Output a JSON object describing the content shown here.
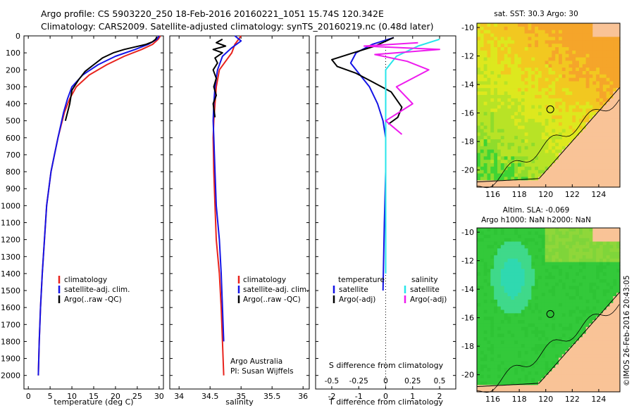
{
  "header": {
    "line1": "Argo profile: CS 5903220_250 18-Feb-2016 20160221_1051 15.74S 120.342E",
    "line2": "Climatology: CARS2009. Satellite-adjusted climatology: synTS_20160219.nc (0.48d later)"
  },
  "colors": {
    "climatology": "#e8231d",
    "satellite": "#1414e6",
    "argo": "#000000",
    "satellite_s": "#27e6ea",
    "argo_s": "#ee1cee",
    "land": "#f9c397"
  },
  "chart_data": [
    {
      "type": "line",
      "id": "temperature",
      "xlabel": "temperature (deg C)",
      "xlim": [
        -1,
        31
      ],
      "ylim": [
        0,
        2080
      ],
      "xticks": [
        "0",
        "5",
        "10",
        "15",
        "20",
        "25",
        "30"
      ],
      "yticks": [
        "0",
        "100",
        "200",
        "300",
        "400",
        "500",
        "600",
        "700",
        "800",
        "900",
        "1000",
        "1100",
        "1200",
        "1300",
        "1400",
        "1500",
        "1600",
        "1700",
        "1800",
        "1900",
        "2000"
      ],
      "series": [
        {
          "name": "climatology",
          "x": [
            30.3,
            29.8,
            28.5,
            26,
            22,
            18,
            14,
            11,
            9.5,
            8.3,
            6.8,
            6,
            5.2,
            4.7,
            4.2,
            3.7,
            3.2,
            2.8,
            2.5,
            2.3
          ],
          "y": [
            0,
            20,
            50,
            80,
            120,
            170,
            230,
            300,
            370,
            450,
            600,
            700,
            800,
            900,
            1000,
            1200,
            1400,
            1600,
            1800,
            2000
          ]
        },
        {
          "name": "satellite-adj. clim.",
          "x": [
            30,
            29.5,
            27.5,
            24.5,
            20,
            16,
            12.5,
            10,
            9,
            8.1,
            6.8,
            6,
            5.2,
            4.7,
            4.2,
            3.7,
            3.2,
            2.8,
            2.5,
            2.3
          ],
          "y": [
            0,
            20,
            50,
            80,
            120,
            170,
            230,
            300,
            370,
            450,
            600,
            700,
            800,
            900,
            1000,
            1200,
            1400,
            1600,
            1800,
            2000
          ]
        },
        {
          "name": "Argo(..raw -QC)",
          "x": [
            29.5,
            29.2,
            28.5,
            27,
            24.5,
            22,
            19.5,
            17,
            15,
            13,
            11.5,
            10,
            9.5,
            8.5
          ],
          "y": [
            5,
            20,
            35,
            50,
            65,
            80,
            100,
            130,
            170,
            210,
            260,
            320,
            400,
            500
          ]
        }
      ],
      "legend": [
        "climatology",
        "satellite-adj. clim.",
        "Argo(..raw -QC)"
      ]
    },
    {
      "type": "line",
      "id": "salinity",
      "xlabel": "salinity",
      "xlim": [
        33.85,
        36.1
      ],
      "ylim": [
        0,
        2080
      ],
      "xticks": [
        "34",
        "34.5",
        "35",
        "35.5",
        "36"
      ],
      "series": [
        {
          "name": "climatology",
          "x": [
            35,
            34.9,
            34.85,
            34.75,
            34.65,
            34.6,
            34.58,
            34.56,
            34.55,
            34.56,
            34.58,
            34.6,
            34.65,
            34.68,
            34.7,
            34.72
          ],
          "y": [
            0,
            50,
            100,
            150,
            200,
            300,
            400,
            500,
            600,
            800,
            1000,
            1200,
            1400,
            1600,
            1800,
            2000
          ]
        },
        {
          "name": "satellite-adj. clim.",
          "x": [
            34.9,
            35,
            34.85,
            34.7,
            34.62,
            34.58,
            34.56,
            34.55,
            34.56,
            34.58,
            34.6,
            34.65,
            34.68,
            34.7,
            34.72
          ],
          "y": [
            0,
            30,
            70,
            120,
            200,
            300,
            400,
            500,
            600,
            800,
            1000,
            1200,
            1400,
            1600,
            1800
          ]
        },
        {
          "name": "Argo(..raw -QC)",
          "x": [
            34.7,
            34.6,
            34.75,
            34.55,
            34.7,
            34.58,
            34.62,
            34.55,
            34.6,
            34.56,
            34.6,
            34.55,
            34.58
          ],
          "y": [
            20,
            40,
            60,
            80,
            100,
            130,
            160,
            200,
            250,
            300,
            350,
            400,
            480
          ]
        }
      ],
      "legend": [
        "climatology",
        "satellite-adj. clim.",
        "Argo(..raw -QC)"
      ],
      "annotations": [
        "Argo Australia",
        "PI: Susan Wijffels"
      ]
    },
    {
      "type": "line",
      "id": "difference",
      "xlabel": "T difference from climatology",
      "xlabel_top": "S difference from climatology",
      "xlim": [
        -2.6,
        2.6
      ],
      "ylim": [
        0,
        2080
      ],
      "xticks": [
        "-2",
        "-1",
        "0",
        "1",
        "2"
      ],
      "xticks_s": [
        "-0.5",
        "-0.25",
        "0",
        "0.25",
        "0.5"
      ],
      "series": [
        {
          "name": "temperature satellite",
          "x": [
            0.3,
            -0.5,
            -1.1,
            -1.3,
            -1.0,
            -0.6,
            -0.3,
            -0.1,
            0,
            0,
            -0.05,
            -0.1
          ],
          "y": [
            10,
            50,
            100,
            160,
            220,
            300,
            400,
            500,
            600,
            800,
            1100,
            1500
          ]
        },
        {
          "name": "temperature Argo(-adj)",
          "x": [
            0.3,
            -0.4,
            -1.2,
            -2.0,
            -1.8,
            -1.1,
            -0.5,
            0.2,
            0.6,
            0.45,
            0.1
          ],
          "y": [
            10,
            60,
            100,
            140,
            180,
            220,
            270,
            330,
            420,
            480,
            520
          ]
        },
        {
          "name": "salinity satellite",
          "x": [
            0.5,
            0.3,
            0.1,
            0,
            0,
            0,
            0
          ],
          "y": [
            20,
            60,
            120,
            200,
            300,
            500,
            1400
          ]
        },
        {
          "name": "salinity Argo(-adj)",
          "x": [
            0.3,
            -0.2,
            0.5,
            -0.1,
            0.2,
            0.4,
            0.1,
            0.25,
            0.0,
            0.15
          ],
          "y": [
            40,
            60,
            80,
            110,
            150,
            200,
            300,
            400,
            500,
            580
          ]
        }
      ],
      "legend_left_header": "temperature",
      "legend_right_header": "salinity",
      "legend_left": [
        "satellite",
        "Argo(-adj)"
      ],
      "legend_right": [
        "satellite",
        "Argo(-adj)"
      ]
    },
    {
      "type": "heatmap",
      "id": "sst_map",
      "title": "sat. SST: 30.3 Argo: 30",
      "xlim": [
        114.8,
        125.6
      ],
      "ylim": [
        -21.2,
        -9.7
      ],
      "xticks": [
        "116",
        "118",
        "120",
        "122",
        "124"
      ],
      "yticks": [
        "-10",
        "-12",
        "-14",
        "-16",
        "-18",
        "-20"
      ],
      "profile_lon": 120.342,
      "profile_lat": -15.74
    },
    {
      "type": "heatmap",
      "id": "sla_map",
      "title": "Altim. SLA: -0.069",
      "subtitle": "Argo h1000: NaN h2000: NaN",
      "xlim": [
        114.8,
        125.6
      ],
      "ylim": [
        -21.2,
        -9.7
      ],
      "xticks": [
        "116",
        "118",
        "120",
        "122",
        "124"
      ],
      "yticks": [
        "-10",
        "-12",
        "-14",
        "-16",
        "-18",
        "-20"
      ],
      "profile_lon": 120.342,
      "profile_lat": -15.74
    }
  ],
  "credit": "©IMOS 26-Feb-2016 20:43:05"
}
